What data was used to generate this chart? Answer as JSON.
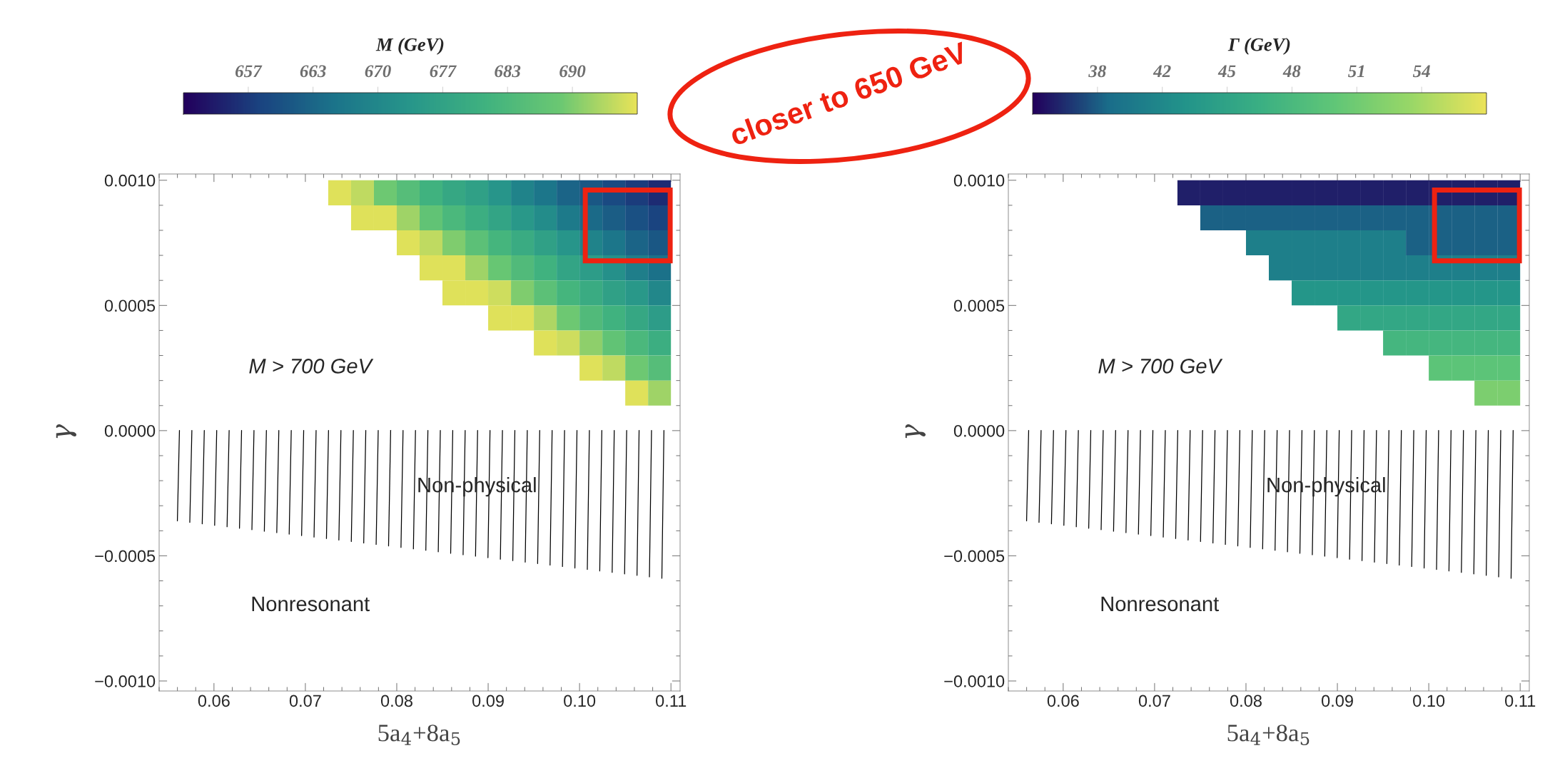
{
  "chart_data": [
    {
      "type": "heatmap",
      "clabel": "M (GeV)",
      "xlabel": "5a$_{4}$+8a$_{5}$",
      "ylabel": "γ",
      "x": [
        0.07375,
        0.07625,
        0.07875,
        0.08125,
        0.08375,
        0.08625,
        0.08875,
        0.09125,
        0.09375,
        0.09625,
        0.09875,
        0.10125,
        0.10375,
        0.10625,
        0.10875
      ],
      "y": [
        0.00095,
        0.00085,
        0.00075,
        0.00065,
        0.00055,
        0.00045,
        0.00035,
        0.00025,
        0.00015
      ],
      "cells": [
        [
          696,
          694,
          689,
          685,
          681,
          678,
          676,
          673,
          669,
          666,
          663,
          661,
          659,
          657,
          655
        ],
        [
          null,
          696,
          696,
          692,
          687,
          683,
          680,
          677,
          674,
          671,
          667,
          664,
          662,
          660,
          658
        ],
        [
          null,
          null,
          null,
          696,
          694,
          690,
          686,
          682,
          679,
          676,
          673,
          669,
          666,
          663,
          661
        ],
        [
          null,
          null,
          null,
          null,
          696,
          696,
          692,
          688,
          684,
          681,
          677,
          675,
          672,
          668,
          665
        ],
        [
          null,
          null,
          null,
          null,
          null,
          696,
          696,
          695,
          690,
          686,
          682,
          679,
          676,
          674,
          670
        ],
        [
          null,
          null,
          null,
          null,
          null,
          null,
          null,
          696,
          696,
          693,
          689,
          684,
          681,
          678,
          675
        ],
        [
          null,
          null,
          null,
          null,
          null,
          null,
          null,
          null,
          null,
          696,
          695,
          691,
          687,
          683,
          680
        ],
        [
          null,
          null,
          null,
          null,
          null,
          null,
          null,
          null,
          null,
          null,
          null,
          696,
          694,
          689,
          685
        ],
        [
          null,
          null,
          null,
          null,
          null,
          null,
          null,
          null,
          null,
          null,
          null,
          null,
          null,
          696,
          692
        ]
      ],
      "clim": [
        650,
        696.67
      ],
      "cticks": [
        {
          "value": 656.67,
          "label": "657"
        },
        {
          "value": 663.33,
          "label": "663"
        },
        670,
        {
          "value": 676.67,
          "label": "677"
        },
        {
          "value": 683.33,
          "label": "683"
        },
        690
      ],
      "colors": [
        "#22005c",
        "#1a4380",
        "#1b748a",
        "#27968a",
        "#40b27f",
        "#6cc872",
        "#e8e358"
      ],
      "xlim": [
        0.054,
        0.111
      ],
      "xticks": [
        0.06,
        0.07,
        0.08,
        0.09,
        {
          "value": 0.1,
          "label": "0.10"
        },
        0.11
      ],
      "ylim": [
        -0.00104,
        0.001025
      ],
      "yticks": [
        {
          "value": -0.001,
          "label": "−0.0010"
        },
        {
          "value": -0.0005,
          "label": "−0.0005"
        },
        {
          "value": 0,
          "label": "0.0000"
        },
        {
          "value": 0.0005,
          "label": "0.0005"
        },
        {
          "value": 0.001,
          "label": "0.0010"
        }
      ],
      "annotations": [
        "M > 700 GeV",
        "Non-physical",
        "Nonresonant",
        "closer to 650 GeV"
      ]
    },
    {
      "type": "heatmap",
      "clabel": "Γ (GeV)",
      "xlabel": "5a$_{4}$+8a$_{5}$",
      "ylabel": "γ",
      "x": [
        0.07375,
        0.07625,
        0.07875,
        0.08125,
        0.08375,
        0.08625,
        0.08875,
        0.09125,
        0.09375,
        0.09625,
        0.09875,
        0.10125,
        0.10375,
        0.10625,
        0.10875
      ],
      "y": [
        0.00095,
        0.00085,
        0.00075,
        0.00065,
        0.00055,
        0.00045,
        0.00035,
        0.00025,
        0.00015
      ],
      "cells": [
        [
          36.3,
          36.3,
          36.3,
          36.3,
          36.3,
          36.3,
          36.3,
          36.3,
          36.3,
          36.3,
          36.3,
          36.3,
          36.3,
          36.3,
          36.3
        ],
        [
          null,
          38.6,
          38.6,
          38.6,
          38.6,
          38.6,
          38.6,
          38.6,
          38.6,
          38.6,
          38.6,
          38.6,
          38.6,
          38.6,
          38.6
        ],
        [
          null,
          null,
          null,
          40.8,
          40.8,
          40.8,
          40.8,
          40.8,
          40.8,
          40.8,
          38.6,
          38.6,
          38.6,
          38.6,
          38.6
        ],
        [
          null,
          null,
          null,
          null,
          40.8,
          40.8,
          40.8,
          40.8,
          40.8,
          40.8,
          40.8,
          40.8,
          40.8,
          40.8,
          40.8
        ],
        [
          null,
          null,
          null,
          null,
          null,
          43.0,
          43.0,
          43.0,
          43.0,
          43.0,
          43.0,
          43.0,
          43.0,
          43.0,
          43.0
        ],
        [
          null,
          null,
          null,
          null,
          null,
          null,
          null,
          45.3,
          45.3,
          45.3,
          45.3,
          45.3,
          45.3,
          45.3,
          45.3
        ],
        [
          null,
          null,
          null,
          null,
          null,
          null,
          null,
          null,
          null,
          47.5,
          47.5,
          47.5,
          47.5,
          47.5,
          47.5
        ],
        [
          null,
          null,
          null,
          null,
          null,
          null,
          null,
          null,
          null,
          null,
          null,
          49.8,
          49.8,
          49.8,
          49.8
        ],
        [
          null,
          null,
          null,
          null,
          null,
          null,
          null,
          null,
          null,
          null,
          null,
          null,
          null,
          52.0,
          52.0
        ]
      ],
      "clim": [
        35.2,
        57.6
      ],
      "cticks": [
        {
          "value": 38.4,
          "label": "38"
        },
        {
          "value": 41.6,
          "label": "42"
        },
        {
          "value": 44.8,
          "label": "45"
        },
        48,
        {
          "value": 51.2,
          "label": "51"
        },
        {
          "value": 54.4,
          "label": "54"
        }
      ],
      "colors": [
        "#22005c",
        "#1a6d8a",
        "#22938a",
        "#3aaf83",
        "#60c677",
        "#98d767",
        "#ebe35a"
      ],
      "xlim": [
        0.054,
        0.111
      ],
      "xticks": [
        0.06,
        0.07,
        0.08,
        0.09,
        {
          "value": 0.1,
          "label": "0.10"
        },
        0.11
      ],
      "ylim": [
        -0.00104,
        0.001025
      ],
      "yticks": [
        {
          "value": -0.001,
          "label": "−0.0010"
        },
        {
          "value": -0.0005,
          "label": "−0.0005"
        },
        {
          "value": 0,
          "label": "0.0000"
        },
        {
          "value": 0.0005,
          "label": "0.0005"
        },
        {
          "value": 0.001,
          "label": "0.0010"
        }
      ],
      "annotations": [
        "M > 700 GeV",
        "Non-physical",
        "Nonresonant"
      ]
    }
  ]
}
